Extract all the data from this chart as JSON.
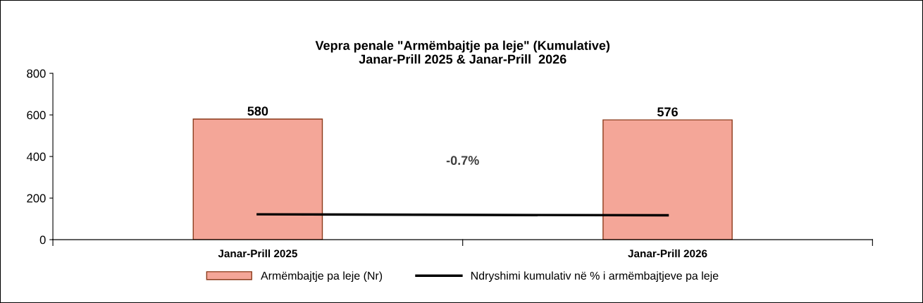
{
  "chart_data": {
    "type": "bar",
    "title": "Vepra penale \"Armëmbajtje pa leje\" (Kumulative)\nJanar-Prill 2025 & Janar-Prill  2026",
    "categories": [
      "Janar-Prill 2025",
      "Janar-Prill 2026"
    ],
    "series": [
      {
        "name": "Armëmbajtje pa leje (Nr)",
        "color": "#f4a698",
        "values": [
          580,
          576
        ],
        "value_labels": [
          "580",
          "576"
        ]
      },
      {
        "name": "Ndryshimi kumulativ në % i armëmbajtjeve pa leje",
        "type": "line",
        "color": "#000000",
        "values": [
          122,
          117
        ]
      }
    ],
    "ylim": [
      0,
      800
    ],
    "yticks": [
      0,
      200,
      400,
      600,
      800
    ],
    "grid": false,
    "legend": "bottom",
    "marker": "none",
    "line_style": "solid",
    "annotations": [
      "-0.7%"
    ]
  }
}
